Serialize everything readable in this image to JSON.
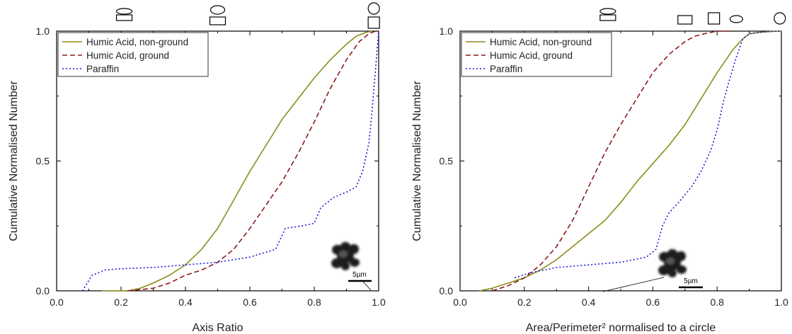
{
  "chart_data": [
    {
      "type": "line",
      "xlabel": "Axis Ratio",
      "ylabel": "Cumulative Normalised Number",
      "xlim": [
        0,
        1
      ],
      "ylim": [
        0,
        1
      ],
      "xticks": [
        "0.0",
        "0.2",
        "0.4",
        "0.6",
        "0.8",
        "1.0"
      ],
      "yticks": [
        "0.0",
        "0.5",
        "1.0"
      ],
      "grid": false,
      "legend_position": "top-left",
      "scale_bar_label": "5µm",
      "shape_icons": [
        {
          "x": 0.21,
          "shape": "stacked-ellipse-rect"
        },
        {
          "x": 0.5,
          "shape": "circle-over-rect"
        },
        {
          "x": 0.985,
          "shape": "circle-over-square"
        }
      ],
      "series": [
        {
          "name": "Humic Acid, non-ground",
          "color": "#8c8c1a",
          "dash": "solid",
          "x": [
            0.14,
            0.22,
            0.26,
            0.3,
            0.35,
            0.4,
            0.45,
            0.5,
            0.55,
            0.6,
            0.65,
            0.7,
            0.75,
            0.8,
            0.85,
            0.9,
            0.93,
            0.96,
            0.98
          ],
          "y": [
            0.0,
            0.0,
            0.01,
            0.03,
            0.06,
            0.1,
            0.16,
            0.24,
            0.35,
            0.46,
            0.56,
            0.66,
            0.74,
            0.82,
            0.89,
            0.95,
            0.98,
            0.995,
            1.0
          ]
        },
        {
          "name": "Humic Acid, ground",
          "color": "#8b1a1a",
          "dash": "dashed",
          "x": [
            0.22,
            0.3,
            0.35,
            0.4,
            0.45,
            0.5,
            0.55,
            0.6,
            0.65,
            0.7,
            0.75,
            0.8,
            0.85,
            0.9,
            0.94,
            0.97,
            0.99
          ],
          "y": [
            0.0,
            0.01,
            0.03,
            0.06,
            0.08,
            0.11,
            0.16,
            0.24,
            0.33,
            0.42,
            0.53,
            0.65,
            0.78,
            0.89,
            0.96,
            0.99,
            1.0
          ]
        },
        {
          "name": "Paraffin",
          "color": "#1a1ad9",
          "dash": "dotted",
          "x": [
            0.08,
            0.11,
            0.15,
            0.2,
            0.3,
            0.4,
            0.5,
            0.6,
            0.68,
            0.71,
            0.76,
            0.8,
            0.82,
            0.86,
            0.9,
            0.93,
            0.95,
            0.97,
            0.98,
            0.99,
            1.0
          ],
          "y": [
            0.0,
            0.06,
            0.08,
            0.085,
            0.09,
            0.1,
            0.11,
            0.13,
            0.16,
            0.24,
            0.25,
            0.26,
            0.32,
            0.36,
            0.38,
            0.4,
            0.46,
            0.57,
            0.7,
            0.85,
            1.0
          ]
        }
      ]
    },
    {
      "type": "line",
      "xlabel": "Area/Perimeter² normalised to a circle",
      "ylabel": "Cumulative Normalised Number",
      "xlim": [
        0,
        1
      ],
      "ylim": [
        0,
        1
      ],
      "xticks": [
        "0.0",
        "0.2",
        "0.4",
        "0.6",
        "0.8",
        "1.0"
      ],
      "yticks": [
        "0.0",
        "0.5",
        "1.0"
      ],
      "grid": false,
      "legend_position": "top-left",
      "scale_bar_label": "5µm",
      "shape_icons": [
        {
          "x": 0.46,
          "shape": "stacked-ellipse-rect"
        },
        {
          "x": 0.7,
          "shape": "rect"
        },
        {
          "x": 0.79,
          "shape": "square"
        },
        {
          "x": 0.86,
          "shape": "ellipse"
        },
        {
          "x": 0.995,
          "shape": "circle"
        }
      ],
      "series": [
        {
          "name": "Humic Acid, non-ground",
          "color": "#8c8c1a",
          "dash": "solid",
          "x": [
            0.06,
            0.1,
            0.15,
            0.2,
            0.25,
            0.3,
            0.35,
            0.4,
            0.45,
            0.5,
            0.55,
            0.6,
            0.65,
            0.7,
            0.75,
            0.8,
            0.85,
            0.88,
            0.9,
            0.93,
            0.97,
            1.0
          ],
          "y": [
            0.0,
            0.01,
            0.03,
            0.05,
            0.08,
            0.12,
            0.17,
            0.22,
            0.27,
            0.34,
            0.42,
            0.49,
            0.56,
            0.64,
            0.74,
            0.84,
            0.93,
            0.97,
            0.99,
            0.995,
            0.999,
            1.0
          ]
        },
        {
          "name": "Humic Acid, ground",
          "color": "#8b1a1a",
          "dash": "dashed",
          "x": [
            0.1,
            0.15,
            0.2,
            0.25,
            0.3,
            0.35,
            0.4,
            0.45,
            0.5,
            0.55,
            0.6,
            0.65,
            0.7,
            0.73,
            0.76,
            0.8,
            0.85
          ],
          "y": [
            0.0,
            0.02,
            0.05,
            0.1,
            0.17,
            0.27,
            0.4,
            0.53,
            0.64,
            0.74,
            0.84,
            0.91,
            0.96,
            0.98,
            0.99,
            1.0,
            1.0
          ]
        },
        {
          "name": "Paraffin",
          "color": "#1a1ad9",
          "dash": "dotted",
          "x": [
            0.17,
            0.22,
            0.3,
            0.4,
            0.5,
            0.58,
            0.61,
            0.63,
            0.65,
            0.68,
            0.72,
            0.75,
            0.78,
            0.8,
            0.82,
            0.84,
            0.86,
            0.88,
            0.9,
            0.93,
            0.97,
            1.0
          ],
          "y": [
            0.05,
            0.07,
            0.09,
            0.1,
            0.11,
            0.13,
            0.16,
            0.25,
            0.3,
            0.34,
            0.4,
            0.46,
            0.54,
            0.62,
            0.73,
            0.82,
            0.9,
            0.97,
            0.99,
            0.995,
            0.999,
            1.0
          ]
        }
      ]
    }
  ]
}
